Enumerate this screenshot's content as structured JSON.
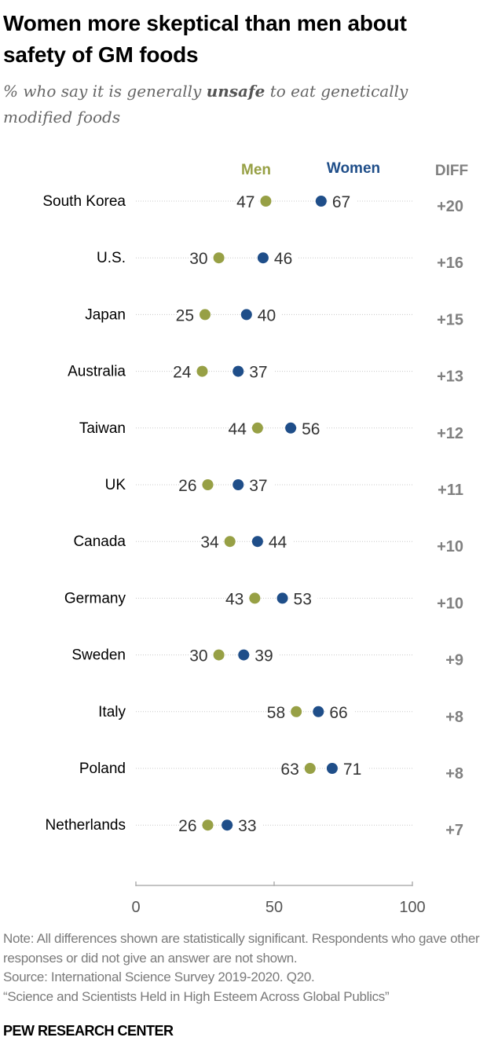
{
  "title": "Women more skeptical than men about safety of GM foods",
  "subtitle": {
    "pre": "% who say it is generally ",
    "emph": "unsafe",
    "post": " to eat genetically modified foods"
  },
  "chart_data": {
    "type": "dot",
    "categories": [
      "South Korea",
      "U.S.",
      "Japan",
      "Australia",
      "Taiwan",
      "UK",
      "Canada",
      "Germany",
      "Sweden",
      "Italy",
      "Poland",
      "Netherlands"
    ],
    "series": [
      {
        "name": "Men",
        "color": "#97a045",
        "values": [
          47,
          30,
          25,
          24,
          44,
          26,
          34,
          43,
          30,
          58,
          63,
          26
        ]
      },
      {
        "name": "Women",
        "color": "#1f4e89",
        "values": [
          67,
          46,
          40,
          37,
          56,
          37,
          44,
          53,
          39,
          66,
          71,
          33
        ]
      }
    ],
    "diff_header": "DIFF",
    "diff": [
      "+20",
      "+16",
      "+15",
      "+13",
      "+12",
      "+11",
      "+10",
      "+10",
      "+9",
      "+8",
      "+8",
      "+7"
    ],
    "xlim": [
      0,
      100
    ],
    "xticks": [
      "0",
      "50",
      "100"
    ]
  },
  "note": "Note: All differences shown are statistically significant. Respondents who gave other responses or did not give an answer are not shown.",
  "source": "Source: International Science Survey 2019-2020. Q20.",
  "report": "“Science and Scientists Held in High Esteem Across Global Publics”",
  "brand": "PEW RESEARCH CENTER"
}
